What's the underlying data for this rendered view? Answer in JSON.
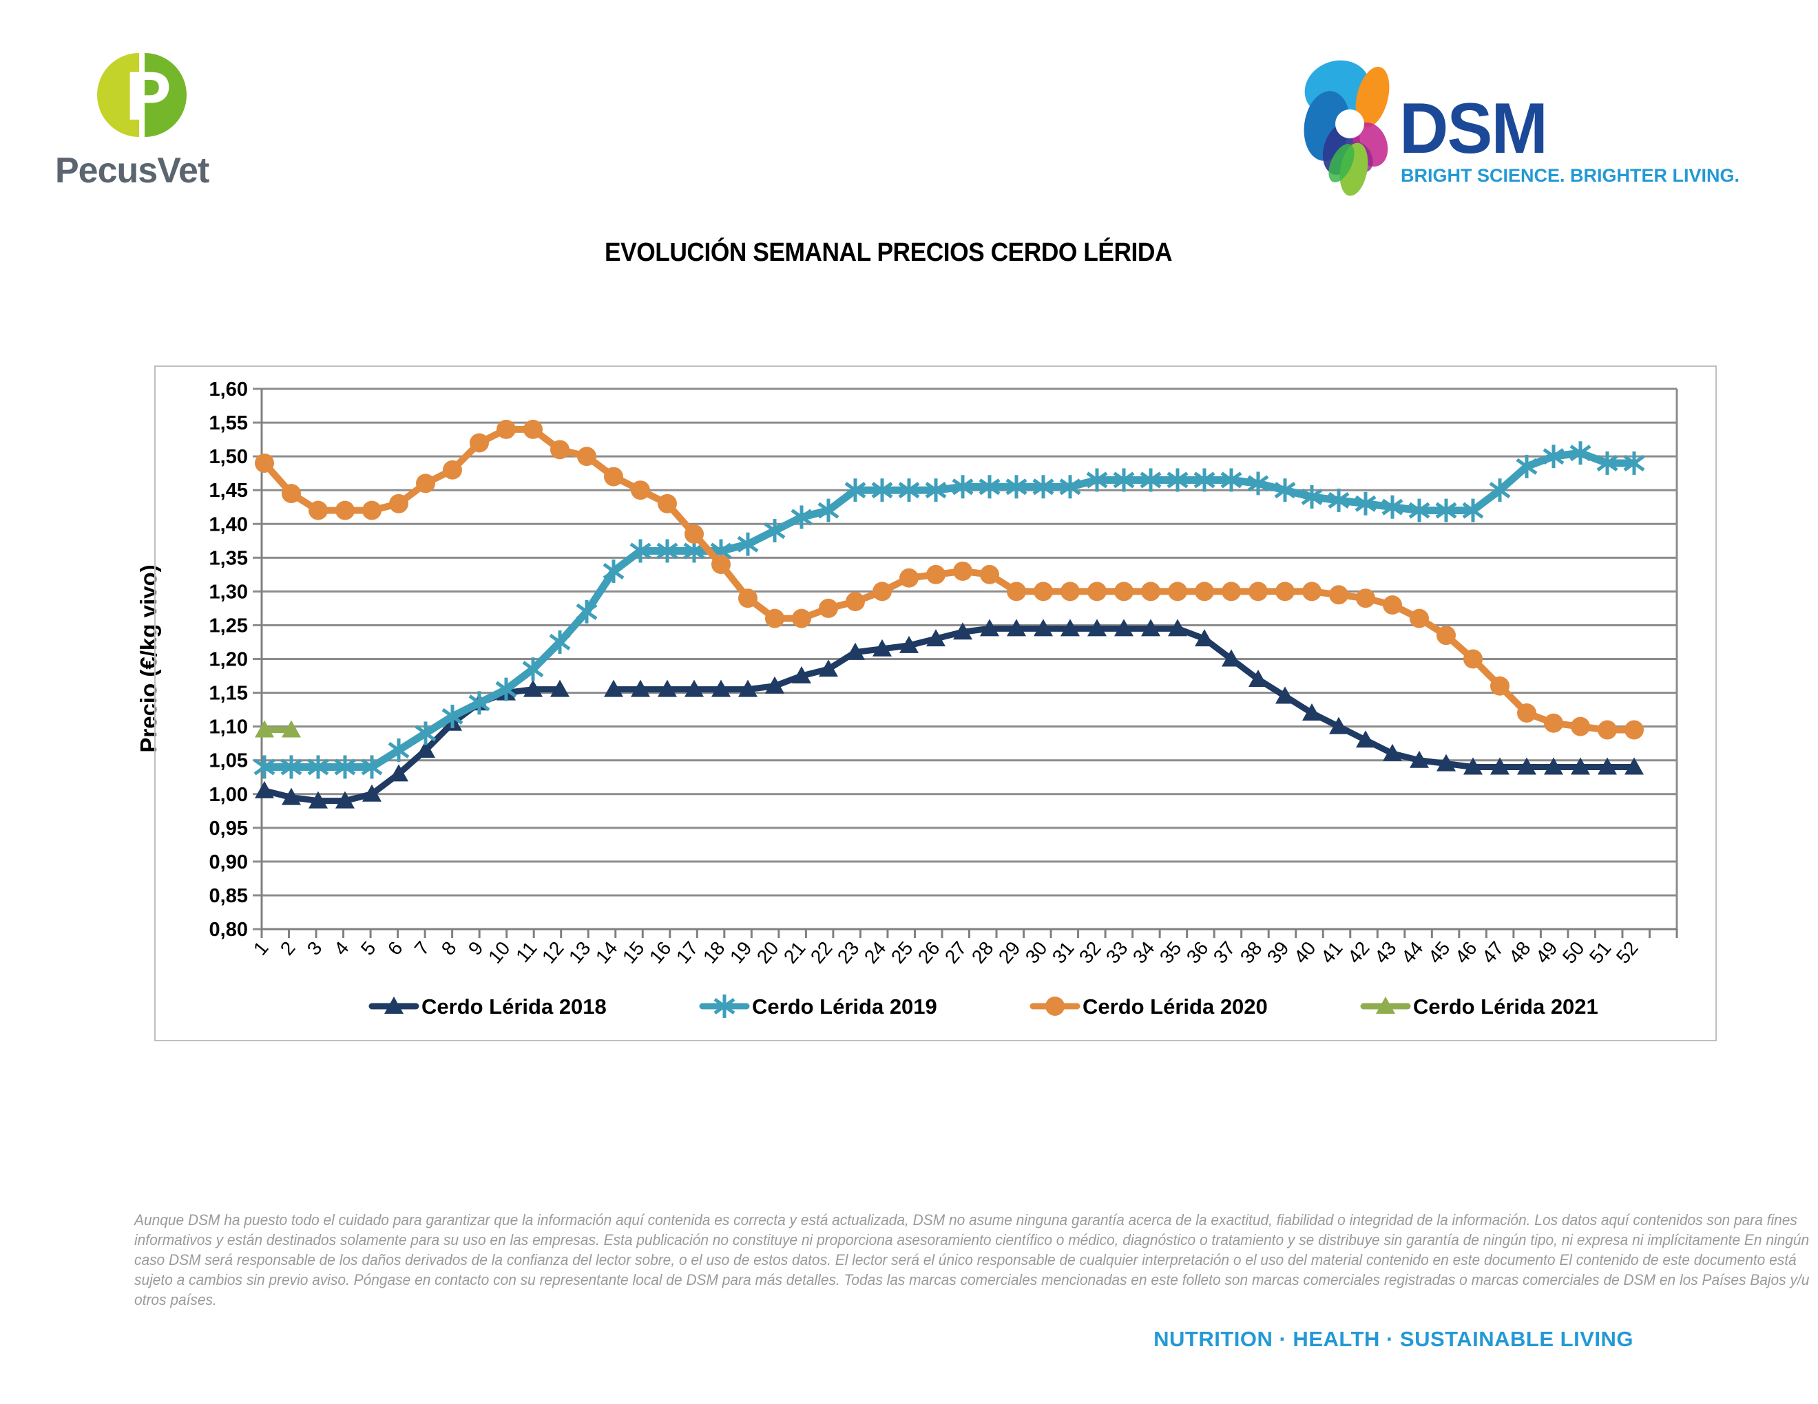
{
  "header": {
    "pecusvet_text": "PecusVet",
    "dsm_text": "DSM",
    "dsm_tagline": "BRIGHT SCIENCE. BRIGHTER LIVING."
  },
  "title": "EVOLUCIÓN SEMANAL PRECIOS CERDO LÉRIDA",
  "chart_data": {
    "type": "line",
    "x": [
      1,
      2,
      3,
      4,
      5,
      6,
      7,
      8,
      9,
      10,
      11,
      12,
      13,
      14,
      15,
      16,
      17,
      18,
      19,
      20,
      21,
      22,
      23,
      24,
      25,
      26,
      27,
      28,
      29,
      30,
      31,
      32,
      33,
      34,
      35,
      36,
      37,
      38,
      39,
      40,
      41,
      42,
      43,
      44,
      45,
      46,
      47,
      48,
      49,
      50,
      51,
      52
    ],
    "xlabel": "",
    "ylabel": "Precio (€/kg vivo)",
    "ylim": [
      0.8,
      1.6
    ],
    "ytick_step": 0.05,
    "decimal_separator": ",",
    "grid": true,
    "legend_position": "bottom",
    "series": [
      {
        "name": "Cerdo Lérida 2018",
        "color": "#1F3A63",
        "marker": "triangle",
        "values": [
          1.005,
          0.995,
          0.99,
          0.99,
          1.0,
          1.03,
          1.065,
          1.105,
          1.135,
          1.15,
          1.155,
          1.155,
          null,
          1.155,
          1.155,
          1.155,
          1.155,
          1.155,
          1.155,
          1.16,
          1.175,
          1.185,
          1.21,
          1.215,
          1.22,
          1.23,
          1.24,
          1.245,
          1.245,
          1.245,
          1.245,
          1.245,
          1.245,
          1.245,
          1.245,
          1.23,
          1.2,
          1.17,
          1.145,
          1.12,
          1.1,
          1.08,
          1.06,
          1.05,
          1.045,
          1.04,
          1.04,
          1.04,
          1.04,
          1.04,
          1.04,
          1.04
        ]
      },
      {
        "name": "Cerdo Lérida 2019",
        "color": "#3E9FBB",
        "marker": "star",
        "values": [
          1.04,
          1.04,
          1.04,
          1.04,
          1.04,
          1.065,
          1.09,
          1.115,
          1.135,
          1.155,
          1.185,
          1.225,
          1.27,
          1.33,
          1.36,
          1.36,
          1.36,
          1.36,
          1.37,
          1.39,
          1.41,
          1.42,
          1.45,
          1.45,
          1.45,
          1.45,
          1.455,
          1.455,
          1.455,
          1.455,
          1.455,
          1.465,
          1.465,
          1.465,
          1.465,
          1.465,
          1.465,
          1.46,
          1.45,
          1.44,
          1.435,
          1.43,
          1.425,
          1.42,
          1.42,
          1.42,
          1.45,
          1.485,
          1.5,
          1.505,
          1.49,
          1.49
        ]
      },
      {
        "name": "Cerdo Lérida 2020",
        "color": "#E28A3E",
        "marker": "circle",
        "values": [
          1.49,
          1.445,
          1.42,
          1.42,
          1.42,
          1.43,
          1.46,
          1.48,
          1.52,
          1.54,
          1.54,
          1.51,
          1.5,
          1.47,
          1.45,
          1.43,
          1.385,
          1.34,
          1.29,
          1.26,
          1.26,
          1.275,
          1.285,
          1.3,
          1.32,
          1.325,
          1.33,
          1.325,
          1.3,
          1.3,
          1.3,
          1.3,
          1.3,
          1.3,
          1.3,
          1.3,
          1.3,
          1.3,
          1.3,
          1.3,
          1.295,
          1.29,
          1.28,
          1.26,
          1.235,
          1.2,
          1.16,
          1.12,
          1.105,
          1.1,
          1.095,
          1.095
        ]
      },
      {
        "name": "Cerdo Lérida 2021",
        "color": "#8FAD4E",
        "marker": "triangle",
        "values": [
          1.095,
          1.095
        ]
      }
    ]
  },
  "footer": {
    "lines": [
      "Aunque DSM ha puesto todo el cuidado para garantizar que la información aquí contenida es correcta y está actualizada, DSM no asume ninguna garantía acerca de la exactitud, fiabilidad o integridad de la información. Los datos aquí contenidos son para fines",
      "informativos y están destinados solamente para su uso en las empresas. Esta publicación no constituye ni proporciona asesoramiento científico o médico, diagnóstico o tratamiento y se distribuye sin garantía de ningún tipo, ni expresa ni implícitamente En ningún",
      "caso DSM será responsable de los daños derivados de la confianza del lector sobre, o el uso de estos datos. El lector será el único responsable de cualquier interpretación o el uso del material contenido en este documento El contenido de este documento está",
      "sujeto a cambios sin previo aviso. Póngase en contacto con su representante local de DSM para más detalles. Todas las marcas comerciales mencionadas en este folleto son marcas comerciales registradas o marcas comerciales de DSM en los Países Bajos y/u",
      "otros países."
    ]
  },
  "bottom_tagline": "NUTRITION · HEALTH · SUSTAINABLE LIVING",
  "colors": {
    "pecusvet_yellow": "#C4D32A",
    "pecusvet_green": "#75B72B",
    "pecusvet_gray": "#5B6570",
    "dsm_dark_blue": "#1B4998",
    "dsm_light_blue": "#2399D6",
    "gridline_gray": "#8C8C8C",
    "chart_border_gray": "#BFBFBF",
    "footer_gray": "#9A9A9A"
  }
}
